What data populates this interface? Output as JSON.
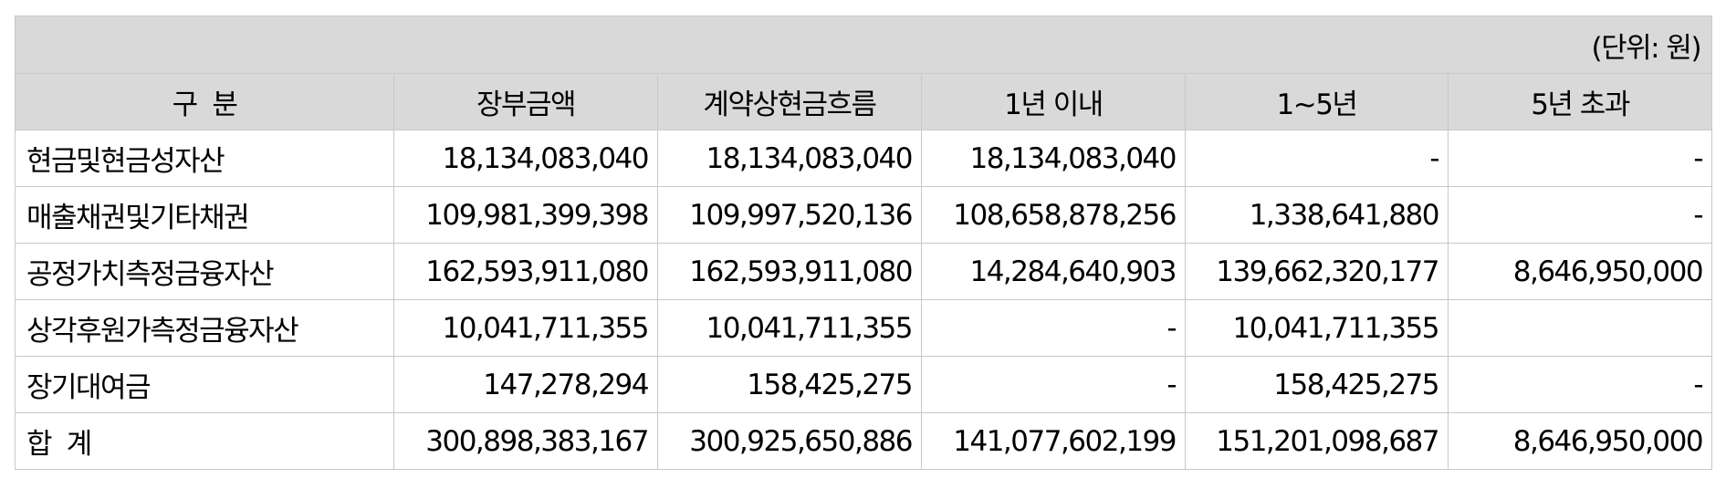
{
  "unit": "(단위: 원)",
  "headers": [
    "구  분",
    "장부금액",
    "계약상현금흐름",
    "1년 이내",
    "1~5년",
    "5년 초과"
  ],
  "rows": [
    {
      "label": "현금및현금성자산",
      "values": [
        "18,134,083,040",
        "18,134,083,040",
        "18,134,083,040",
        "-",
        "-"
      ]
    },
    {
      "label": "매출채권및기타채권",
      "values": [
        "109,981,399,398",
        "109,997,520,136",
        "108,658,878,256",
        "1,338,641,880",
        "-"
      ]
    },
    {
      "label": "공정가치측정금융자산",
      "values": [
        "162,593,911,080",
        "162,593,911,080",
        "14,284,640,903",
        "139,662,320,177",
        "8,646,950,000"
      ]
    },
    {
      "label": "상각후원가측정금융자산",
      "values": [
        "10,041,711,355",
        "10,041,711,355",
        "-",
        "10,041,711,355",
        ""
      ]
    },
    {
      "label": "장기대여금",
      "values": [
        "147,278,294",
        "158,425,275",
        "-",
        "158,425,275",
        "-"
      ]
    },
    {
      "label": "합  계",
      "values": [
        "300,898,383,167",
        "300,925,650,886",
        "141,077,602,199",
        "151,201,098,687",
        "8,646,950,000"
      ]
    }
  ]
}
